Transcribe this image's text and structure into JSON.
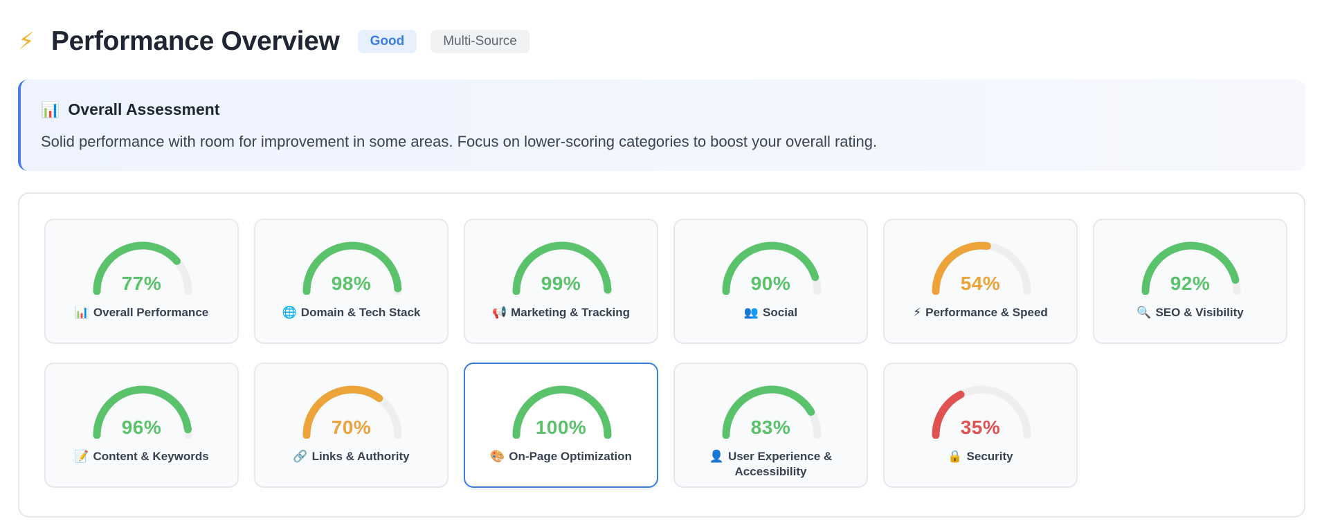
{
  "header": {
    "icon": "lightning-bolt-icon",
    "title": "Performance Overview",
    "status_badge": "Good",
    "source_badge": "Multi-Source"
  },
  "assessment": {
    "icon": "bar-chart-icon",
    "icon_glyph": "📊",
    "heading": "Overall Assessment",
    "text": "Solid performance with room for improvement in some areas. Focus on lower-scoring categories to boost your overall rating."
  },
  "colors": {
    "good": "#5ac26a",
    "medium": "#eca33a",
    "poor": "#e05252",
    "track": "#eeeeee",
    "accent": "#3b7ddd"
  },
  "cards": [
    {
      "id": "overall-performance",
      "label": "Overall Performance",
      "icon": "bar-chart-icon",
      "glyph": "📊",
      "score": 77,
      "score_text": "77%",
      "level": "good",
      "selected": false
    },
    {
      "id": "domain-tech-stack",
      "label": "Domain & Tech Stack",
      "icon": "globe-icon",
      "glyph": "🌐",
      "score": 98,
      "score_text": "98%",
      "level": "good",
      "selected": false
    },
    {
      "id": "marketing-tracking",
      "label": "Marketing & Tracking",
      "icon": "megaphone-icon",
      "glyph": "📢",
      "score": 99,
      "score_text": "99%",
      "level": "good",
      "selected": false
    },
    {
      "id": "social",
      "label": "Social",
      "icon": "people-icon",
      "glyph": "👥",
      "score": 90,
      "score_text": "90%",
      "level": "good",
      "selected": false
    },
    {
      "id": "performance-speed",
      "label": "Performance & Speed",
      "icon": "lightning-bolt-icon",
      "glyph": "⚡",
      "score": 54,
      "score_text": "54%",
      "level": "medium",
      "selected": false
    },
    {
      "id": "seo-visibility",
      "label": "SEO & Visibility",
      "icon": "magnifier-icon",
      "glyph": "🔍",
      "score": 92,
      "score_text": "92%",
      "level": "good",
      "selected": false
    },
    {
      "id": "content-keywords",
      "label": "Content & Keywords",
      "icon": "memo-icon",
      "glyph": "📝",
      "score": 96,
      "score_text": "96%",
      "level": "good",
      "selected": false
    },
    {
      "id": "links-authority",
      "label": "Links & Authority",
      "icon": "link-icon",
      "glyph": "🔗",
      "score": 70,
      "score_text": "70%",
      "level": "medium",
      "selected": false
    },
    {
      "id": "on-page-optimization",
      "label": "On-Page Optimization",
      "icon": "palette-icon",
      "glyph": "🎨",
      "score": 100,
      "score_text": "100%",
      "level": "good",
      "selected": true
    },
    {
      "id": "user-experience",
      "label": "User Experience &",
      "label_line2": "Accessibility",
      "icon": "user-icon",
      "glyph": "👤",
      "score": 83,
      "score_text": "83%",
      "level": "good",
      "selected": false
    },
    {
      "id": "security",
      "label": "Security",
      "icon": "lock-icon",
      "glyph": "🔒",
      "score": 35,
      "score_text": "35%",
      "level": "poor",
      "selected": false
    }
  ]
}
